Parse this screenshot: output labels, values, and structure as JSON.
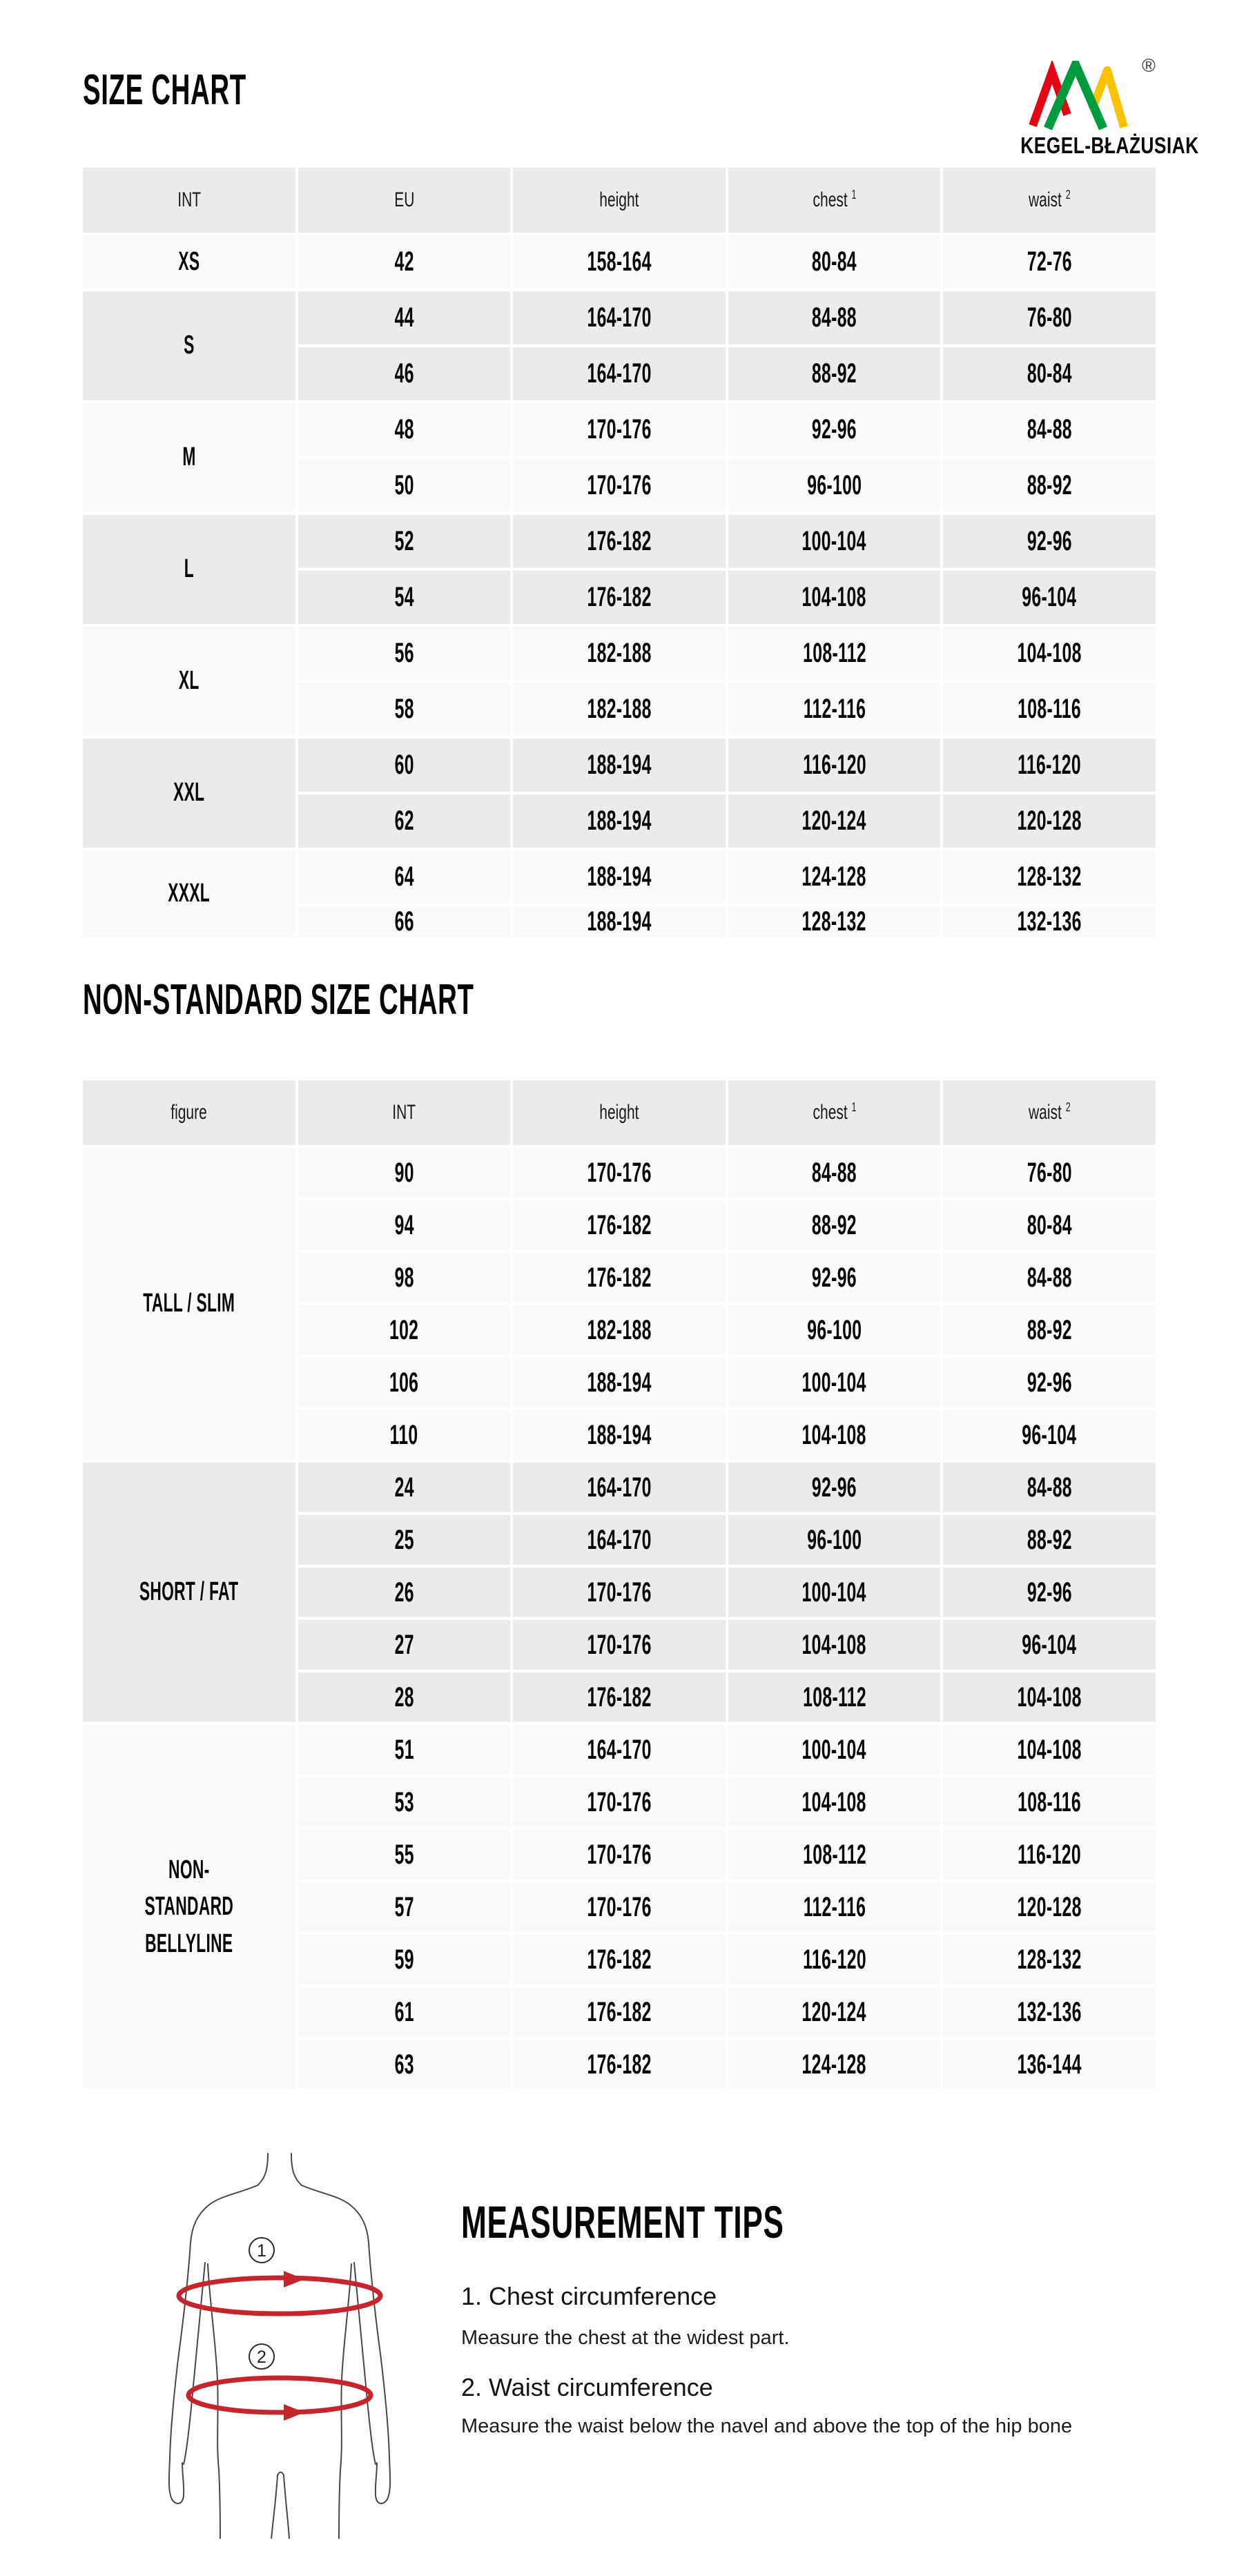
{
  "header": {
    "title": "SIZE CHART",
    "brand": "KEGEL-BŁAŻUSIAK",
    "registered_mark": "®"
  },
  "size_chart": {
    "columns": [
      {
        "label": "INT"
      },
      {
        "label": "EU"
      },
      {
        "label": "height"
      },
      {
        "label": "chest",
        "sup": "1"
      },
      {
        "label": "waist",
        "sup": "2"
      }
    ],
    "groups": [
      {
        "label": "XS",
        "shade": "light",
        "rows": [
          [
            "42",
            "158-164",
            "80-84",
            "72-76"
          ]
        ]
      },
      {
        "label": "S",
        "shade": "gray",
        "rows": [
          [
            "44",
            "164-170",
            "84-88",
            "76-80"
          ],
          [
            "46",
            "164-170",
            "88-92",
            "80-84"
          ]
        ]
      },
      {
        "label": "M",
        "shade": "light",
        "rows": [
          [
            "48",
            "170-176",
            "92-96",
            "84-88"
          ],
          [
            "50",
            "170-176",
            "96-100",
            "88-92"
          ]
        ]
      },
      {
        "label": "L",
        "shade": "gray",
        "rows": [
          [
            "52",
            "176-182",
            "100-104",
            "92-96"
          ],
          [
            "54",
            "176-182",
            "104-108",
            "96-104"
          ]
        ]
      },
      {
        "label": "XL",
        "shade": "light",
        "rows": [
          [
            "56",
            "182-188",
            "108-112",
            "104-108"
          ],
          [
            "58",
            "182-188",
            "112-116",
            "108-116"
          ]
        ]
      },
      {
        "label": "XXL",
        "shade": "gray",
        "rows": [
          [
            "60",
            "188-194",
            "116-120",
            "116-120"
          ],
          [
            "62",
            "188-194",
            "120-124",
            "120-128"
          ]
        ]
      },
      {
        "label": "XXXL",
        "shade": "light",
        "rows": [
          [
            "64",
            "188-194",
            "124-128",
            "128-132"
          ],
          [
            "66",
            "188-194",
            "128-132",
            "132-136"
          ]
        ]
      }
    ]
  },
  "non_standard_chart": {
    "title": "NON-STANDARD SIZE CHART",
    "columns": [
      {
        "label": "figure"
      },
      {
        "label": "INT"
      },
      {
        "label": "height"
      },
      {
        "label": "chest",
        "sup": "1"
      },
      {
        "label": "waist",
        "sup": "2"
      }
    ],
    "groups": [
      {
        "label": "TALL / SLIM",
        "shade": "light",
        "rows": [
          [
            "90",
            "170-176",
            "84-88",
            "76-80"
          ],
          [
            "94",
            "176-182",
            "88-92",
            "80-84"
          ],
          [
            "98",
            "176-182",
            "92-96",
            "84-88"
          ],
          [
            "102",
            "182-188",
            "96-100",
            "88-92"
          ],
          [
            "106",
            "188-194",
            "100-104",
            "92-96"
          ],
          [
            "110",
            "188-194",
            "104-108",
            "96-104"
          ]
        ]
      },
      {
        "label": "SHORT / FAT",
        "shade": "gray",
        "rows": [
          [
            "24",
            "164-170",
            "92-96",
            "84-88"
          ],
          [
            "25",
            "164-170",
            "96-100",
            "88-92"
          ],
          [
            "26",
            "170-176",
            "100-104",
            "92-96"
          ],
          [
            "27",
            "170-176",
            "104-108",
            "96-104"
          ],
          [
            "28",
            "176-182",
            "108-112",
            "104-108"
          ]
        ]
      },
      {
        "label": "NON-STANDARD BELLYLINE",
        "shade": "light",
        "rows": [
          [
            "51",
            "164-170",
            "100-104",
            "104-108"
          ],
          [
            "53",
            "170-176",
            "104-108",
            "108-116"
          ],
          [
            "55",
            "170-176",
            "108-112",
            "116-120"
          ],
          [
            "57",
            "170-176",
            "112-116",
            "120-128"
          ],
          [
            "59",
            "176-182",
            "116-120",
            "128-132"
          ],
          [
            "61",
            "176-182",
            "120-124",
            "132-136"
          ],
          [
            "63",
            "176-182",
            "124-128",
            "136-144"
          ]
        ]
      }
    ]
  },
  "tips": {
    "heading": "MEASUREMENT TIPS",
    "items": [
      {
        "number": "1",
        "title": "1. Chest circumference",
        "description": "Measure the chest at the widest part."
      },
      {
        "number": "2",
        "title": "2. Waist circumference",
        "description": "Measure the waist below the navel and above the top of the hip bone"
      }
    ]
  },
  "colors": {
    "logo_red": "#e30613",
    "logo_green": "#009b3e",
    "logo_yellow": "#fcc200",
    "band_red": "#c5262d",
    "row_gray": "#ebebeb",
    "row_light": "#f9f9f9"
  }
}
